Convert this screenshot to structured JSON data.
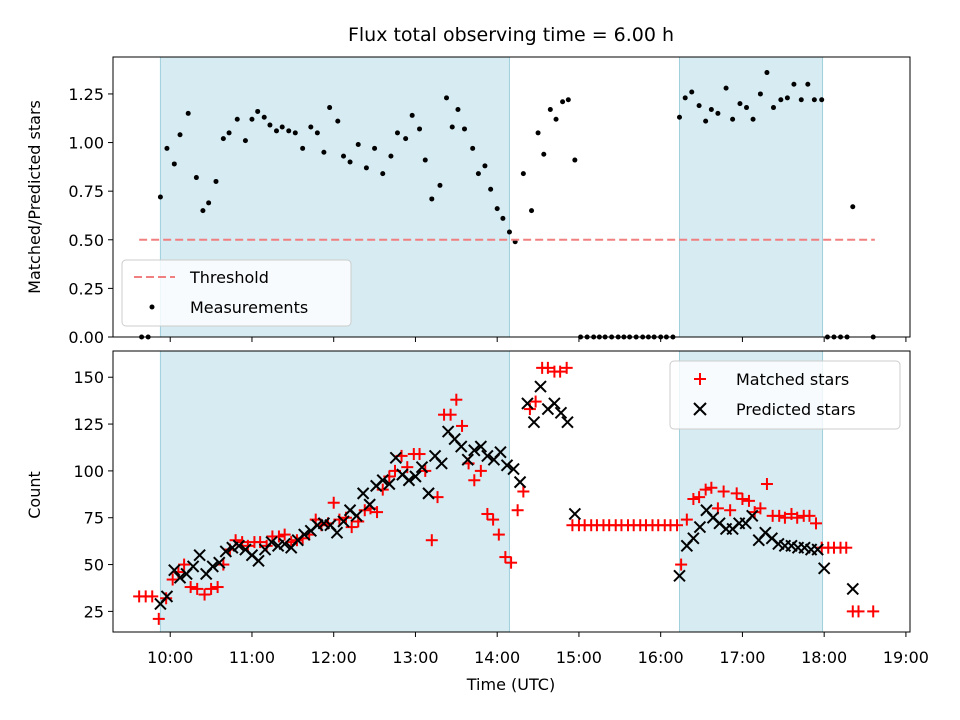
{
  "chart_data": [
    {
      "type": "scatter",
      "title": "Flux total observing time = 6.00 h",
      "xlabel": "",
      "ylabel": "Matched/Predicted stars",
      "xlim_hours": [
        9.3,
        19.05
      ],
      "ylim": [
        0,
        1.44
      ],
      "yticks": [
        0.0,
        0.25,
        0.5,
        0.75,
        1.0,
        1.25
      ],
      "ytick_labels": [
        "0.00",
        "0.25",
        "0.50",
        "0.75",
        "1.00",
        "1.25"
      ],
      "shaded_spans_hours": [
        [
          9.88,
          14.15
        ],
        [
          16.23,
          17.98
        ]
      ],
      "threshold": {
        "label": "Threshold",
        "y": 0.5,
        "x_range": [
          9.62,
          18.62
        ],
        "color": "#f08080"
      },
      "legend": {
        "position": "lower-left",
        "entries": [
          "Threshold",
          "Measurements"
        ]
      },
      "series": [
        {
          "name": "Measurements",
          "color": "#000000",
          "x": [
            9.65,
            9.73,
            9.88,
            9.96,
            10.05,
            10.12,
            10.22,
            10.32,
            10.4,
            10.47,
            10.56,
            10.65,
            10.72,
            10.82,
            10.92,
            11.0,
            11.07,
            11.15,
            11.22,
            11.3,
            11.37,
            11.45,
            11.53,
            11.62,
            11.72,
            11.8,
            11.88,
            11.95,
            12.05,
            12.12,
            12.2,
            12.3,
            12.4,
            12.5,
            12.6,
            12.7,
            12.78,
            12.88,
            12.96,
            13.05,
            13.12,
            13.2,
            13.3,
            13.38,
            13.45,
            13.52,
            13.6,
            13.7,
            13.77,
            13.85,
            13.92,
            14.0,
            14.07,
            14.15,
            14.22,
            14.32,
            14.42,
            14.5,
            14.57,
            14.65,
            14.72,
            14.8,
            14.87,
            14.95,
            15.02,
            15.1,
            15.18,
            15.25,
            15.32,
            15.4,
            15.48,
            15.55,
            15.62,
            15.7,
            15.78,
            15.85,
            15.92,
            16.0,
            16.07,
            16.15,
            16.23,
            16.3,
            16.38,
            16.47,
            16.55,
            16.62,
            16.7,
            16.8,
            16.88,
            16.97,
            17.05,
            17.13,
            17.22,
            17.3,
            17.38,
            17.47,
            17.55,
            17.63,
            17.72,
            17.8,
            17.88,
            17.97,
            18.04,
            18.12,
            18.2,
            18.28,
            18.35,
            18.6
          ],
          "y": [
            0.0,
            0.0,
            0.72,
            0.97,
            0.89,
            1.04,
            1.15,
            0.82,
            0.65,
            0.69,
            0.8,
            1.02,
            1.05,
            1.12,
            1.01,
            1.12,
            1.16,
            1.13,
            1.09,
            1.06,
            1.08,
            1.06,
            1.05,
            0.97,
            1.08,
            1.05,
            0.95,
            1.18,
            1.11,
            0.93,
            0.9,
            0.99,
            0.87,
            0.97,
            0.84,
            0.93,
            1.05,
            1.02,
            1.14,
            1.07,
            0.91,
            0.71,
            0.78,
            1.23,
            1.08,
            1.17,
            1.07,
            0.97,
            0.84,
            0.88,
            0.76,
            0.66,
            0.61,
            0.54,
            0.49,
            0.84,
            0.65,
            1.05,
            0.94,
            1.17,
            1.12,
            1.21,
            1.22,
            0.91,
            0.0,
            0.0,
            0.0,
            0.0,
            0.0,
            0.0,
            0.0,
            0.0,
            0.0,
            0.0,
            0.0,
            0.0,
            0.0,
            0.0,
            0.0,
            0.0,
            1.13,
            1.23,
            1.26,
            1.19,
            1.11,
            1.17,
            1.15,
            1.28,
            1.12,
            1.2,
            1.18,
            1.12,
            1.25,
            1.36,
            1.18,
            1.22,
            1.23,
            1.3,
            1.22,
            1.3,
            1.22,
            1.22,
            0.0,
            0.0,
            0.0,
            0.0,
            0.67,
            0.0
          ]
        }
      ]
    },
    {
      "type": "scatter",
      "title": "",
      "xlabel": "Time (UTC)",
      "ylabel": "Count",
      "xlim_hours": [
        9.3,
        19.05
      ],
      "ylim": [
        14,
        164
      ],
      "yticks": [
        25,
        50,
        75,
        100,
        125,
        150
      ],
      "ytick_labels": [
        "25",
        "50",
        "75",
        "100",
        "125",
        "150"
      ],
      "xticks_hours": [
        10,
        11,
        12,
        13,
        14,
        15,
        16,
        17,
        18,
        19
      ],
      "xtick_labels": [
        "10:00",
        "11:00",
        "12:00",
        "13:00",
        "14:00",
        "15:00",
        "16:00",
        "17:00",
        "18:00",
        "19:00"
      ],
      "shaded_spans_hours": [
        [
          9.88,
          14.15
        ],
        [
          16.23,
          17.98
        ]
      ],
      "legend": {
        "position": "top-right",
        "entries": [
          "Matched stars",
          "Predicted stars"
        ]
      },
      "series": [
        {
          "name": "Matched stars",
          "marker": "plus",
          "color": "#ff0000",
          "x": [
            9.62,
            9.7,
            9.78,
            9.86,
            9.95,
            10.03,
            10.1,
            10.17,
            10.25,
            10.33,
            10.42,
            10.5,
            10.58,
            10.65,
            10.73,
            10.8,
            10.88,
            10.95,
            11.03,
            11.1,
            11.18,
            11.25,
            11.33,
            11.4,
            11.48,
            11.55,
            11.62,
            11.7,
            11.78,
            11.85,
            11.93,
            12.0,
            12.07,
            12.15,
            12.22,
            12.3,
            12.38,
            12.45,
            12.53,
            12.6,
            12.68,
            12.75,
            12.83,
            12.9,
            12.98,
            13.05,
            13.12,
            13.2,
            13.27,
            13.35,
            13.43,
            13.5,
            13.57,
            13.65,
            13.72,
            13.8,
            13.88,
            13.95,
            14.02,
            14.1,
            14.17,
            14.25,
            14.32,
            14.4,
            14.47,
            14.55,
            14.62,
            14.7,
            14.77,
            14.85,
            14.92,
            15.0,
            15.07,
            15.15,
            15.22,
            15.3,
            15.37,
            15.45,
            15.52,
            15.6,
            15.67,
            15.75,
            15.82,
            15.9,
            15.97,
            16.05,
            16.12,
            16.2,
            16.25,
            16.32,
            16.4,
            16.47,
            16.55,
            16.62,
            16.7,
            16.77,
            16.85,
            16.93,
            17.0,
            17.08,
            17.15,
            17.22,
            17.3,
            17.37,
            17.45,
            17.52,
            17.6,
            17.67,
            17.75,
            17.82,
            17.9,
            17.97,
            18.05,
            18.12,
            18.2,
            18.27,
            18.35,
            18.42,
            18.6
          ],
          "y": [
            33,
            33,
            33,
            21,
            32,
            42,
            46,
            50,
            38,
            37,
            34,
            37,
            38,
            50,
            58,
            63,
            62,
            60,
            62,
            62,
            60,
            65,
            65,
            66,
            62,
            63,
            64,
            66,
            74,
            71,
            72,
            83,
            74,
            75,
            70,
            73,
            79,
            80,
            78,
            90,
            97,
            100,
            108,
            102,
            109,
            109,
            100,
            63,
            86,
            130,
            130,
            138,
            124,
            104,
            95,
            100,
            77,
            74,
            66,
            54,
            51,
            79,
            89,
            133,
            137,
            155,
            155,
            153,
            153,
            155,
            71,
            71,
            71,
            71,
            71,
            71,
            71,
            71,
            71,
            71,
            71,
            71,
            71,
            71,
            71,
            71,
            71,
            71,
            50,
            74,
            85,
            86,
            90,
            91,
            80,
            89,
            79,
            88,
            85,
            84,
            78,
            80,
            93,
            76,
            76,
            75,
            77,
            75,
            76,
            76,
            72,
            59,
            59,
            59,
            59,
            59,
            25,
            25,
            25
          ]
        },
        {
          "name": "Predicted stars",
          "marker": "x",
          "color": "#000000",
          "x": [
            9.88,
            9.96,
            10.05,
            10.12,
            10.2,
            10.28,
            10.36,
            10.44,
            10.52,
            10.6,
            10.68,
            10.76,
            10.84,
            10.92,
            11.0,
            11.08,
            11.16,
            11.24,
            11.32,
            11.4,
            11.48,
            11.56,
            11.64,
            11.72,
            11.8,
            11.88,
            11.96,
            12.04,
            12.12,
            12.2,
            12.28,
            12.36,
            12.44,
            12.52,
            12.6,
            12.68,
            12.76,
            12.84,
            12.92,
            13.0,
            13.08,
            13.16,
            13.24,
            13.32,
            13.4,
            13.48,
            13.56,
            13.64,
            13.72,
            13.8,
            13.88,
            13.96,
            14.04,
            14.12,
            14.2,
            14.28,
            14.37,
            14.45,
            14.53,
            14.62,
            14.7,
            14.78,
            14.86,
            14.95,
            16.23,
            16.32,
            16.4,
            16.48,
            16.56,
            16.64,
            16.72,
            16.8,
            16.88,
            16.96,
            17.04,
            17.12,
            17.2,
            17.28,
            17.36,
            17.44,
            17.52,
            17.6,
            17.68,
            17.76,
            17.84,
            17.92,
            18.0,
            18.35
          ],
          "y": [
            29,
            33,
            47,
            43,
            45,
            49,
            55,
            45,
            49,
            51,
            57,
            59,
            60,
            58,
            55,
            52,
            58,
            62,
            60,
            61,
            59,
            63,
            66,
            68,
            71,
            72,
            71,
            67,
            73,
            79,
            76,
            88,
            82,
            92,
            95,
            93,
            107,
            98,
            95,
            97,
            102,
            88,
            108,
            104,
            121,
            117,
            113,
            106,
            111,
            113,
            108,
            106,
            110,
            103,
            101,
            94,
            136,
            126,
            145,
            133,
            136,
            131,
            126,
            77,
            44,
            60,
            64,
            70,
            79,
            75,
            72,
            69,
            69,
            72,
            72,
            76,
            63,
            67,
            64,
            61,
            60,
            60,
            59,
            59,
            58,
            58,
            48,
            37
          ]
        }
      ]
    }
  ]
}
